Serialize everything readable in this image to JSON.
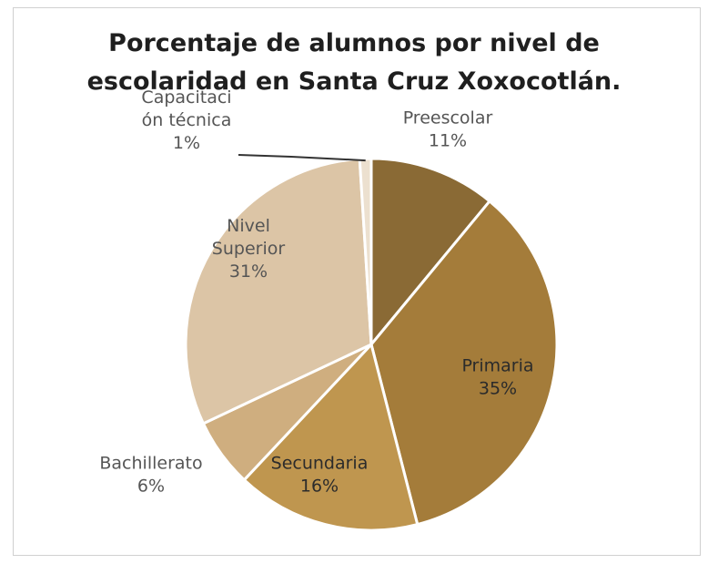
{
  "chart_data": {
    "type": "pie",
    "title_lines": [
      "Porcentaje de alumnos por nivel de",
      "escolaridad en Santa Cruz Xoxocotlán."
    ],
    "slices": [
      {
        "label_lines": [
          "Preescolar"
        ],
        "value": 11,
        "value_label": "11%",
        "color": "#8a6a35",
        "text_color": "#555555"
      },
      {
        "label_lines": [
          "Primaria"
        ],
        "value": 35,
        "value_label": "35%",
        "color": "#a47c3a",
        "text_color": "#2b2b2b"
      },
      {
        "label_lines": [
          "Secundaria"
        ],
        "value": 16,
        "value_label": "16%",
        "color": "#bf964f",
        "text_color": "#2b2b2b"
      },
      {
        "label_lines": [
          "Bachillerato"
        ],
        "value": 6,
        "value_label": "6%",
        "color": "#cfae7f",
        "text_color": "#555555"
      },
      {
        "label_lines": [
          "Nivel",
          "Superior"
        ],
        "value": 31,
        "value_label": "31%",
        "color": "#dcc5a6",
        "text_color": "#555555"
      },
      {
        "label_lines": [
          "Capacitaci",
          "ón técnica"
        ],
        "value": 1,
        "value_label": "1%",
        "color": "#ece0cf",
        "text_color": "#555555"
      }
    ]
  }
}
